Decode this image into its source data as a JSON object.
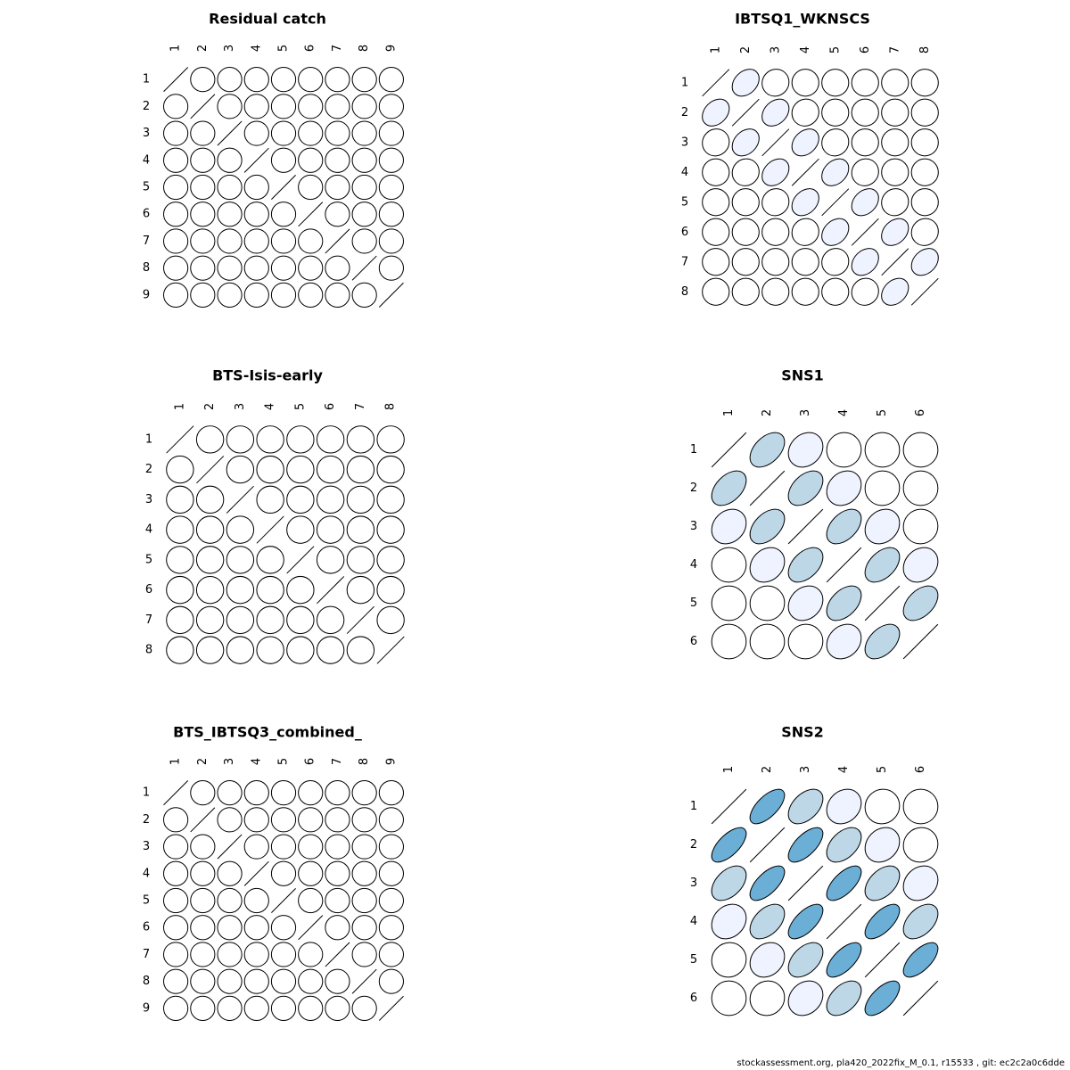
{
  "footer": "stockassessment.org, pla420_2022fix_M_0.1, r15533 , git: ec2c2a0c6dde",
  "colors": {
    "outline": "#000000",
    "background": "#ffffff",
    "scale": [
      "#ffffff",
      "#eff3ff",
      "#bdd7e7",
      "#6baed6",
      "#3182bd",
      "#08519c"
    ]
  },
  "chart_data": [
    {
      "type": "heatmap",
      "title": "Residual catch",
      "labels": [
        "1",
        "2",
        "3",
        "4",
        "5",
        "6",
        "7",
        "8",
        "9"
      ],
      "correlations": [
        [
          1,
          0,
          0,
          0,
          0,
          0,
          0,
          0,
          0
        ],
        [
          0,
          1,
          0,
          0,
          0,
          0,
          0,
          0,
          0
        ],
        [
          0,
          0,
          1,
          0,
          0,
          0,
          0,
          0,
          0
        ],
        [
          0,
          0,
          0,
          1,
          0,
          0,
          0,
          0,
          0
        ],
        [
          0,
          0,
          0,
          0,
          1,
          0,
          0,
          0,
          0
        ],
        [
          0,
          0,
          0,
          0,
          0,
          1,
          0,
          0,
          0
        ],
        [
          0,
          0,
          0,
          0,
          0,
          0,
          1,
          0,
          0
        ],
        [
          0,
          0,
          0,
          0,
          0,
          0,
          0,
          1,
          0
        ],
        [
          0,
          0,
          0,
          0,
          0,
          0,
          0,
          0,
          1
        ]
      ]
    },
    {
      "type": "heatmap",
      "title": "IBTSQ1_WKNSCS",
      "labels": [
        "1",
        "2",
        "3",
        "4",
        "5",
        "6",
        "7",
        "8"
      ],
      "correlations": [
        [
          1,
          0.3,
          0.05,
          0,
          0,
          0,
          0,
          0
        ],
        [
          0.3,
          1,
          0.3,
          0.05,
          0,
          0,
          0,
          0
        ],
        [
          0.05,
          0.3,
          1,
          0.3,
          0.05,
          0,
          0,
          0
        ],
        [
          0,
          0.05,
          0.3,
          1,
          0.3,
          0.05,
          0,
          0
        ],
        [
          0,
          0,
          0.05,
          0.3,
          1,
          0.3,
          0.05,
          0
        ],
        [
          0,
          0,
          0,
          0.05,
          0.3,
          1,
          0.3,
          0.05
        ],
        [
          0,
          0,
          0,
          0,
          0.05,
          0.3,
          1,
          0.3
        ],
        [
          0,
          0,
          0,
          0,
          0,
          0.05,
          0.3,
          1
        ]
      ]
    },
    {
      "type": "heatmap",
      "title": "BTS-Isis-early",
      "labels": [
        "1",
        "2",
        "3",
        "4",
        "5",
        "6",
        "7",
        "8"
      ],
      "correlations": [
        [
          1,
          0,
          0,
          0,
          0,
          0,
          0,
          0
        ],
        [
          0,
          1,
          0,
          0,
          0,
          0,
          0,
          0
        ],
        [
          0,
          0,
          1,
          0,
          0,
          0,
          0,
          0
        ],
        [
          0,
          0,
          0,
          1,
          0,
          0,
          0,
          0
        ],
        [
          0,
          0,
          0,
          0,
          1,
          0,
          0,
          0
        ],
        [
          0,
          0,
          0,
          0,
          0,
          1,
          0,
          0
        ],
        [
          0,
          0,
          0,
          0,
          0,
          0,
          1,
          0
        ],
        [
          0,
          0,
          0,
          0,
          0,
          0,
          0,
          1
        ]
      ]
    },
    {
      "type": "heatmap",
      "title": "SNS1",
      "labels": [
        "1",
        "2",
        "3",
        "4",
        "5",
        "6"
      ],
      "correlations": [
        [
          1,
          0.45,
          0.2,
          0.02,
          0,
          0
        ],
        [
          0.45,
          1,
          0.45,
          0.2,
          0.02,
          0
        ],
        [
          0.2,
          0.45,
          1,
          0.45,
          0.2,
          0.02
        ],
        [
          0.02,
          0.2,
          0.45,
          1,
          0.45,
          0.2
        ],
        [
          0,
          0.02,
          0.2,
          0.45,
          1,
          0.45
        ],
        [
          0,
          0,
          0.02,
          0.2,
          0.45,
          1
        ]
      ]
    },
    {
      "type": "heatmap",
      "title": "BTS_IBTSQ3_combined_",
      "labels": [
        "1",
        "2",
        "3",
        "4",
        "5",
        "6",
        "7",
        "8",
        "9"
      ],
      "correlations": [
        [
          1,
          0,
          0,
          0,
          0,
          0,
          0,
          0,
          0
        ],
        [
          0,
          1,
          0,
          0,
          0,
          0,
          0,
          0,
          0
        ],
        [
          0,
          0,
          1,
          0,
          0,
          0,
          0,
          0,
          0
        ],
        [
          0,
          0,
          0,
          1,
          0,
          0,
          0,
          0,
          0
        ],
        [
          0,
          0,
          0,
          0,
          1,
          0,
          0,
          0,
          0
        ],
        [
          0,
          0,
          0,
          0,
          0,
          1,
          0,
          0,
          0
        ],
        [
          0,
          0,
          0,
          0,
          0,
          0,
          1,
          0,
          0
        ],
        [
          0,
          0,
          0,
          0,
          0,
          0,
          0,
          1,
          0
        ],
        [
          0,
          0,
          0,
          0,
          0,
          0,
          0,
          0,
          1
        ]
      ]
    },
    {
      "type": "heatmap",
      "title": "SNS2",
      "labels": [
        "1",
        "2",
        "3",
        "4",
        "5",
        "6"
      ],
      "correlations": [
        [
          1,
          0.65,
          0.45,
          0.2,
          0.05,
          0
        ],
        [
          0.65,
          1,
          0.65,
          0.45,
          0.2,
          0.05
        ],
        [
          0.45,
          0.65,
          1,
          0.65,
          0.45,
          0.2
        ],
        [
          0.2,
          0.45,
          0.65,
          1,
          0.65,
          0.45
        ],
        [
          0.05,
          0.2,
          0.45,
          0.65,
          1,
          0.65
        ],
        [
          0,
          0.05,
          0.2,
          0.45,
          0.65,
          1
        ]
      ]
    }
  ]
}
